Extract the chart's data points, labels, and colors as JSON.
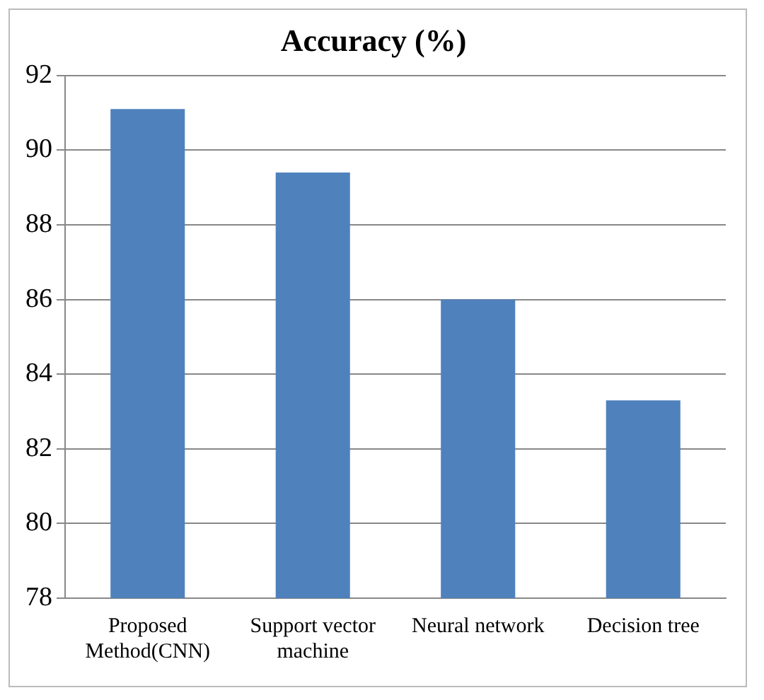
{
  "chart_data": {
    "type": "bar",
    "title": "Accuracy (%)",
    "categories": [
      "Proposed Method(CNN)",
      "Support vector machine",
      "Neural network",
      "Decision tree"
    ],
    "values": [
      91.1,
      89.4,
      86.0,
      83.3
    ],
    "color": "#4f81bd",
    "ylim": [
      78,
      92
    ],
    "yticks": [
      78,
      80,
      82,
      84,
      86,
      88,
      90,
      92
    ],
    "grid": "y",
    "legend": false
  }
}
